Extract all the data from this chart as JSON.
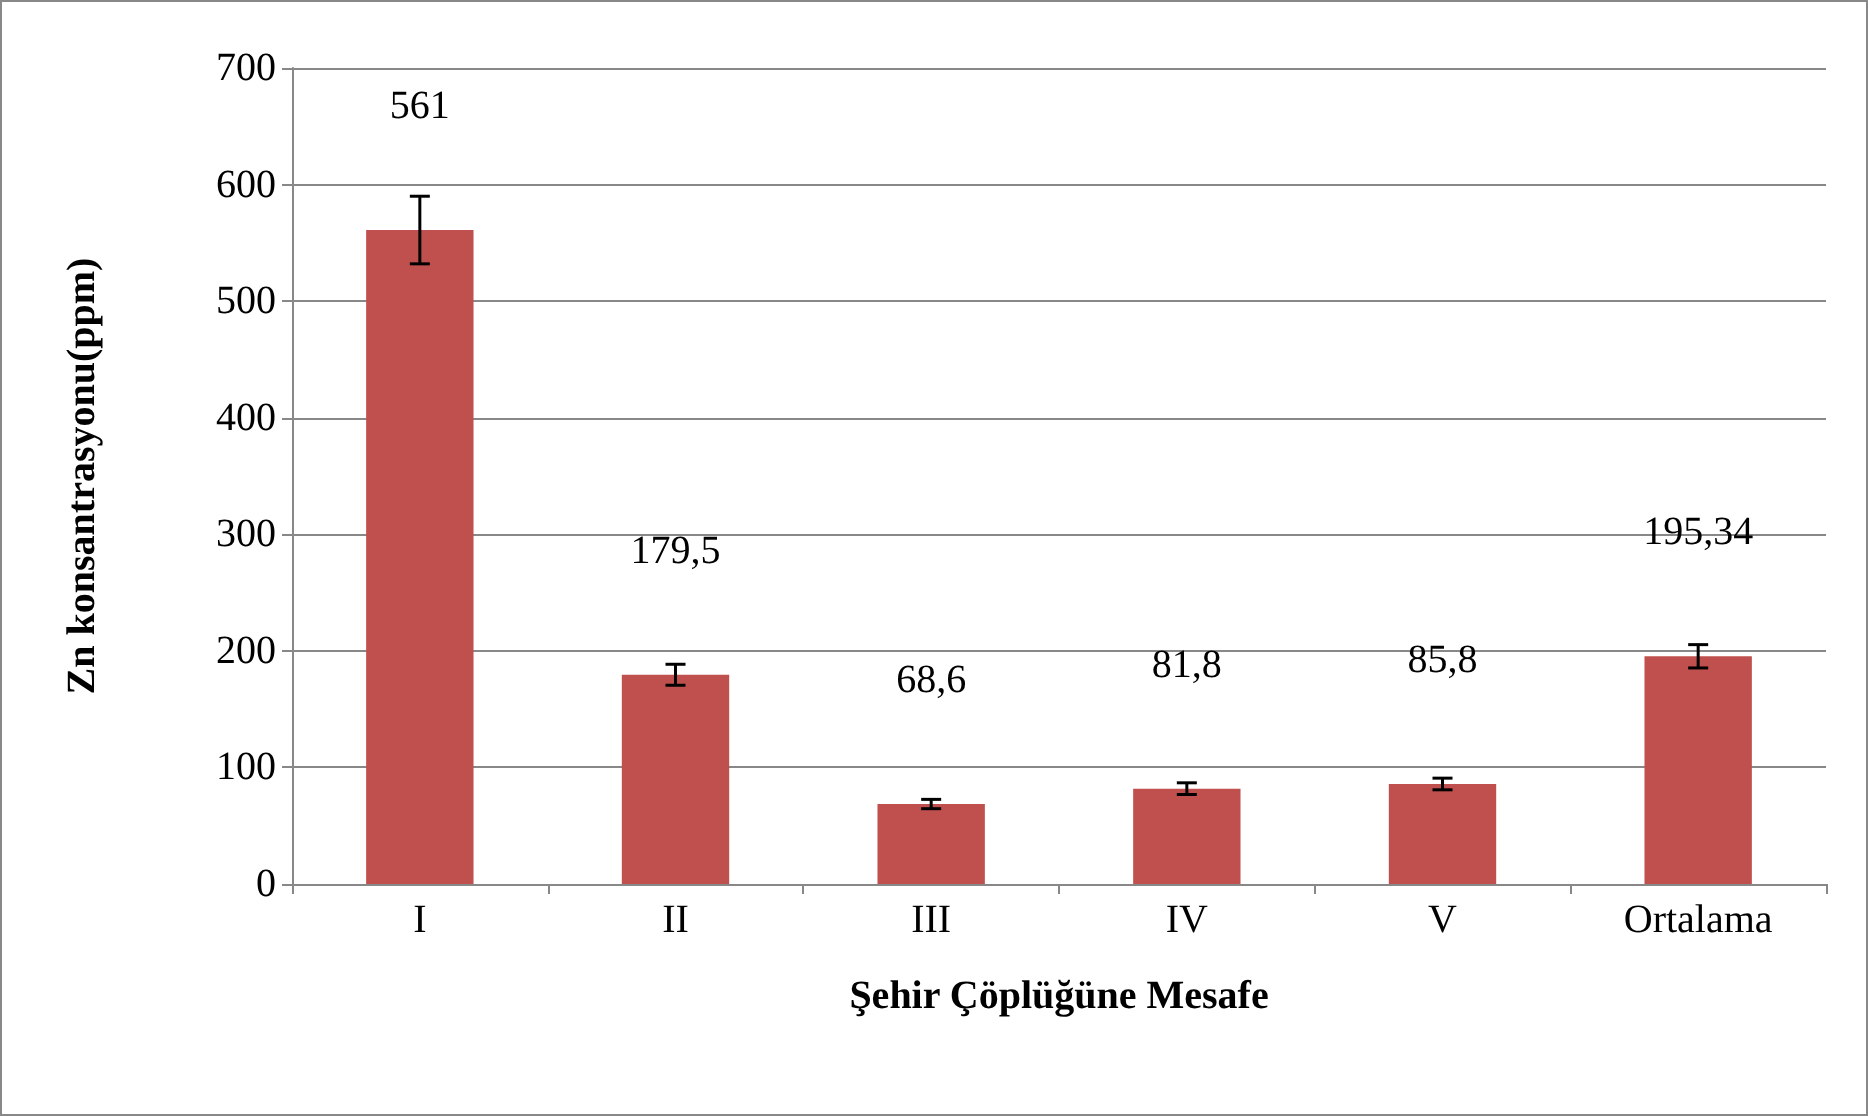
{
  "chart_data": {
    "type": "bar",
    "xlabel": "Şehir Çöplüğüne Mesafe",
    "ylabel": "Zn konsantrasyonu(ppm)",
    "categories": [
      "I",
      "II",
      "III",
      "IV",
      "V",
      "Ortalama"
    ],
    "values": [
      561,
      179.5,
      68.6,
      81.8,
      85.8,
      195.34
    ],
    "errors": [
      29,
      9,
      4,
      5,
      5,
      10
    ],
    "value_labels": [
      "561",
      "179,5",
      "68,6",
      "81,8",
      "85,8",
      "195,34"
    ],
    "color": "#c0504d",
    "ylim": [
      0,
      700
    ],
    "yticks": [
      0,
      100,
      200,
      300,
      400,
      500,
      600,
      700
    ],
    "grid": "y"
  }
}
